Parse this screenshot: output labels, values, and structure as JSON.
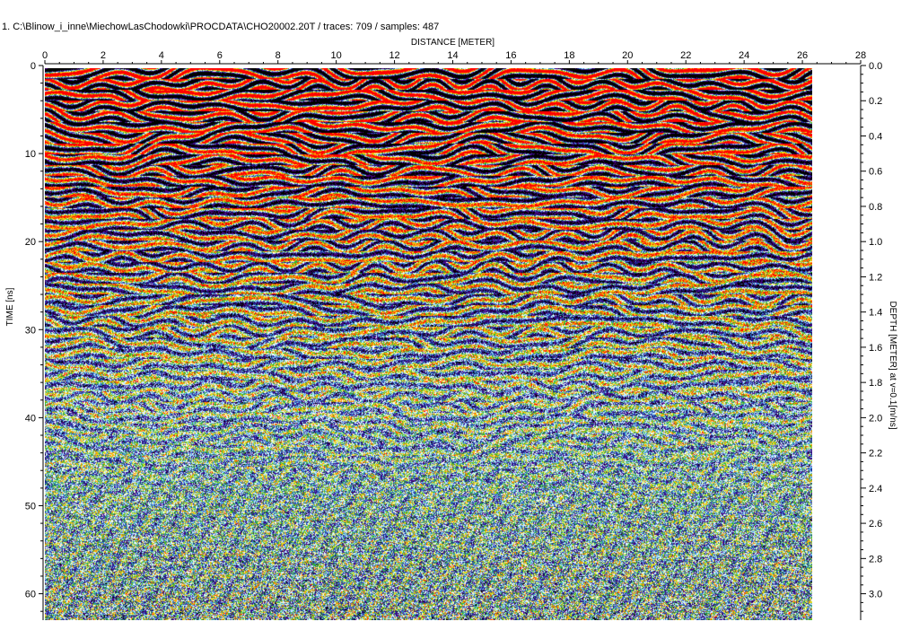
{
  "header": {
    "title": "1. C:\\Blinow_i_inne\\MiechowLasChodowki\\PROCDATA\\CHO20002.20T / traces: 709 / samples: 487"
  },
  "chart_data": {
    "type": "heatmap",
    "title": "1. C:\\Blinow_i_inne\\MiechowLasChodowki\\PROCDATA\\CHO20002.20T / traces: 709 / samples: 487",
    "traces": 709,
    "samples": 487,
    "xlabel": "DISTANCE [METER]",
    "ylabel_left": "TIME [ns]",
    "ylabel_right": "DEPTH [METER] at v=0.1[m/ns]",
    "x_ticks": [
      0,
      2,
      4,
      6,
      8,
      10,
      12,
      14,
      16,
      18,
      20,
      22,
      24,
      26,
      28
    ],
    "x_range": [
      0,
      28
    ],
    "time_ticks": [
      0,
      10,
      20,
      30,
      40,
      50,
      60
    ],
    "time_range": [
      0,
      63
    ],
    "depth_ticks": [
      "0.0",
      "0.2",
      "0.4",
      "0.6",
      "0.8",
      "1.0",
      "1.2",
      "1.4",
      "1.6",
      "1.8",
      "2.0",
      "2.2",
      "2.4",
      "2.6",
      "2.8",
      "3.0"
    ],
    "depth_range": [
      0,
      3.15
    ],
    "colormap": [
      "#000000",
      "#4b0082",
      "#1e1e8c",
      "#3c8cdc",
      "#b4ebff",
      "#ffffff",
      "#32b432",
      "#e6e619",
      "#ff8c00",
      "#ff0000"
    ]
  }
}
